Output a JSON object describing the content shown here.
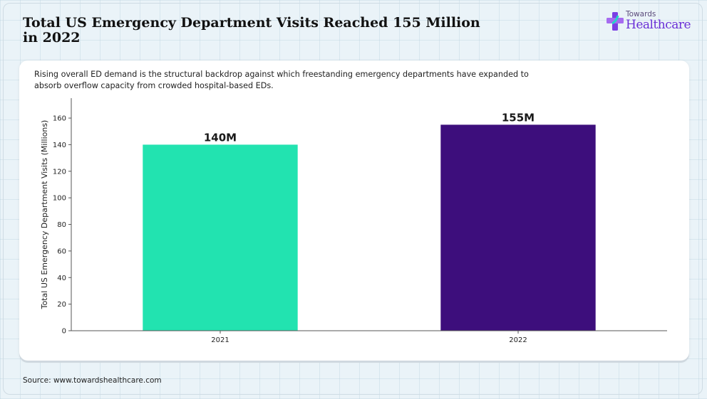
{
  "header": {
    "title": "Total US Emergency Department Visits Reached 155 Million in 2022",
    "subtitle": "Rising overall ED demand is the structural backdrop against which freestanding emergency departments have expanded to absorb overflow capacity from crowded hospital-based EDs."
  },
  "logo": {
    "top_text": "Towards",
    "main_text": "Healthcare",
    "icon": "medical-cross-icon"
  },
  "footer": {
    "source": "Source: www.towardshealthcare.com"
  },
  "chart_data": {
    "type": "bar",
    "categories": [
      "2021",
      "2022"
    ],
    "values": [
      140,
      155
    ],
    "data_labels": [
      "140M",
      "155M"
    ],
    "colors": [
      "#22e3b0",
      "#3d0e7c"
    ],
    "title": "",
    "xlabel": "",
    "ylabel": "Total US Emergency Department Visits (Millions)",
    "ylim": [
      0,
      175
    ],
    "yticks": [
      0,
      20,
      40,
      60,
      80,
      100,
      120,
      140,
      160
    ],
    "grid": false
  }
}
